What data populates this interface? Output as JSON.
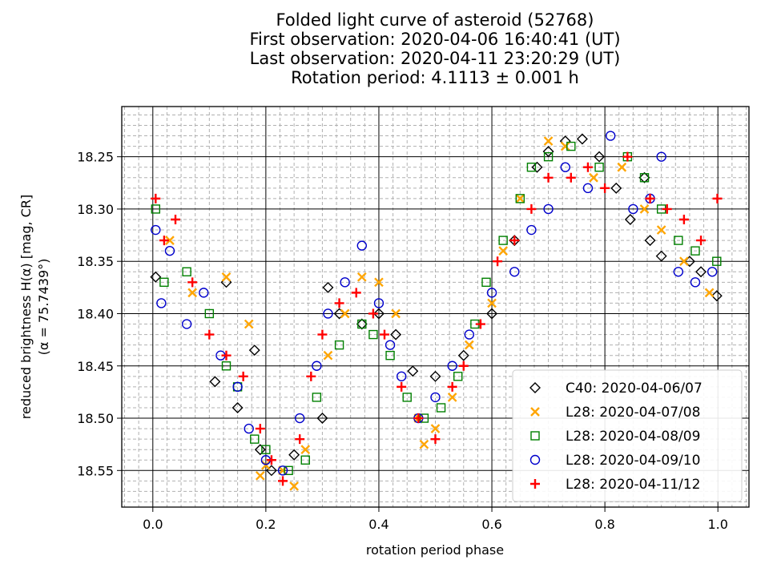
{
  "chart_data": {
    "type": "scatter",
    "title": [
      "Folded light curve of asteroid (52768)",
      "First observation: 2020-04-06 16:40:41 (UT)",
      "Last observation: 2020-04-11 23:20:29 (UT)",
      "Rotation period: 4.1113 ± 0.001 h"
    ],
    "xlabel": "rotation period phase",
    "ylabel": [
      "reduced brightness H(α) [mag, CR]",
      "(α = 75.7439°)"
    ],
    "xlim": [
      -0.055,
      1.055
    ],
    "ylim": [
      18.585,
      18.202
    ],
    "y_inverted": true,
    "x_ticks": [
      0.0,
      0.2,
      0.4,
      0.6,
      0.8,
      1.0
    ],
    "x_tick_labels": [
      "0.0",
      "0.2",
      "0.4",
      "0.6",
      "0.8",
      "1.0"
    ],
    "y_ticks": [
      18.25,
      18.3,
      18.35,
      18.4,
      18.45,
      18.5,
      18.55
    ],
    "y_tick_labels": [
      "18.25",
      "18.30",
      "18.35",
      "18.40",
      "18.45",
      "18.50",
      "18.55"
    ],
    "grid": {
      "major": "solid black",
      "minor": "dashed gray"
    },
    "legend_position": "bottom-right",
    "series": [
      {
        "name": "C40: 2020-04-06/07",
        "marker": "diamond",
        "color": "#000000",
        "points": [
          [
            0.005,
            18.365
          ],
          [
            0.11,
            18.465
          ],
          [
            0.13,
            18.37
          ],
          [
            0.15,
            18.49
          ],
          [
            0.18,
            18.435
          ],
          [
            0.19,
            18.53
          ],
          [
            0.21,
            18.55
          ],
          [
            0.25,
            18.535
          ],
          [
            0.3,
            18.5
          ],
          [
            0.31,
            18.375
          ],
          [
            0.33,
            18.4
          ],
          [
            0.37,
            18.41
          ],
          [
            0.4,
            18.4
          ],
          [
            0.43,
            18.42
          ],
          [
            0.46,
            18.455
          ],
          [
            0.5,
            18.46
          ],
          [
            0.55,
            18.44
          ],
          [
            0.6,
            18.4
          ],
          [
            0.64,
            18.33
          ],
          [
            0.68,
            18.26
          ],
          [
            0.7,
            18.245
          ],
          [
            0.73,
            18.235
          ],
          [
            0.76,
            18.233
          ],
          [
            0.79,
            18.25
          ],
          [
            0.82,
            18.28
          ],
          [
            0.845,
            18.31
          ],
          [
            0.87,
            18.27
          ],
          [
            0.88,
            18.33
          ],
          [
            0.9,
            18.345
          ],
          [
            0.95,
            18.35
          ],
          [
            0.97,
            18.36
          ],
          [
            0.998,
            18.383
          ]
        ]
      },
      {
        "name": "L28: 2020-04-07/08",
        "marker": "x",
        "color": "#ffa500",
        "points": [
          [
            0.03,
            18.33
          ],
          [
            0.07,
            18.38
          ],
          [
            0.13,
            18.365
          ],
          [
            0.17,
            18.41
          ],
          [
            0.19,
            18.555
          ],
          [
            0.2,
            18.545
          ],
          [
            0.23,
            18.55
          ],
          [
            0.25,
            18.565
          ],
          [
            0.27,
            18.53
          ],
          [
            0.31,
            18.44
          ],
          [
            0.34,
            18.4
          ],
          [
            0.37,
            18.365
          ],
          [
            0.4,
            18.37
          ],
          [
            0.43,
            18.4
          ],
          [
            0.47,
            18.5
          ],
          [
            0.48,
            18.525
          ],
          [
            0.5,
            18.51
          ],
          [
            0.53,
            18.48
          ],
          [
            0.56,
            18.43
          ],
          [
            0.6,
            18.39
          ],
          [
            0.62,
            18.34
          ],
          [
            0.65,
            18.29
          ],
          [
            0.7,
            18.235
          ],
          [
            0.73,
            18.24
          ],
          [
            0.78,
            18.27
          ],
          [
            0.83,
            18.26
          ],
          [
            0.87,
            18.3
          ],
          [
            0.9,
            18.32
          ],
          [
            0.94,
            18.35
          ],
          [
            0.985,
            18.38
          ]
        ]
      },
      {
        "name": "L28: 2020-04-08/09",
        "marker": "square",
        "color": "#008000",
        "points": [
          [
            0.005,
            18.3
          ],
          [
            0.02,
            18.37
          ],
          [
            0.06,
            18.36
          ],
          [
            0.1,
            18.4
          ],
          [
            0.13,
            18.45
          ],
          [
            0.15,
            18.47
          ],
          [
            0.18,
            18.52
          ],
          [
            0.2,
            18.53
          ],
          [
            0.24,
            18.55
          ],
          [
            0.27,
            18.54
          ],
          [
            0.29,
            18.48
          ],
          [
            0.33,
            18.43
          ],
          [
            0.37,
            18.41
          ],
          [
            0.39,
            18.42
          ],
          [
            0.42,
            18.44
          ],
          [
            0.45,
            18.48
          ],
          [
            0.48,
            18.5
          ],
          [
            0.51,
            18.49
          ],
          [
            0.54,
            18.46
          ],
          [
            0.57,
            18.41
          ],
          [
            0.59,
            18.37
          ],
          [
            0.62,
            18.33
          ],
          [
            0.65,
            18.29
          ],
          [
            0.67,
            18.26
          ],
          [
            0.7,
            18.25
          ],
          [
            0.74,
            18.24
          ],
          [
            0.79,
            18.26
          ],
          [
            0.84,
            18.25
          ],
          [
            0.87,
            18.27
          ],
          [
            0.9,
            18.3
          ],
          [
            0.93,
            18.33
          ],
          [
            0.96,
            18.34
          ],
          [
            0.998,
            18.35
          ]
        ]
      },
      {
        "name": "L28: 2020-04-09/10",
        "marker": "circle",
        "color": "#0000cc",
        "points": [
          [
            0.005,
            18.32
          ],
          [
            0.015,
            18.39
          ],
          [
            0.03,
            18.34
          ],
          [
            0.06,
            18.41
          ],
          [
            0.09,
            18.38
          ],
          [
            0.12,
            18.44
          ],
          [
            0.15,
            18.47
          ],
          [
            0.17,
            18.51
          ],
          [
            0.2,
            18.54
          ],
          [
            0.23,
            18.55
          ],
          [
            0.26,
            18.5
          ],
          [
            0.29,
            18.45
          ],
          [
            0.31,
            18.4
          ],
          [
            0.34,
            18.37
          ],
          [
            0.37,
            18.335
          ],
          [
            0.4,
            18.39
          ],
          [
            0.42,
            18.43
          ],
          [
            0.44,
            18.46
          ],
          [
            0.47,
            18.5
          ],
          [
            0.5,
            18.48
          ],
          [
            0.53,
            18.45
          ],
          [
            0.56,
            18.42
          ],
          [
            0.6,
            18.38
          ],
          [
            0.64,
            18.36
          ],
          [
            0.67,
            18.32
          ],
          [
            0.7,
            18.3
          ],
          [
            0.73,
            18.26
          ],
          [
            0.77,
            18.28
          ],
          [
            0.81,
            18.23
          ],
          [
            0.85,
            18.3
          ],
          [
            0.88,
            18.29
          ],
          [
            0.9,
            18.25
          ],
          [
            0.93,
            18.36
          ],
          [
            0.96,
            18.37
          ],
          [
            0.99,
            18.36
          ]
        ]
      },
      {
        "name": "L28: 2020-04-11/12",
        "marker": "plus",
        "color": "#ff0000",
        "points": [
          [
            0.005,
            18.29
          ],
          [
            0.02,
            18.33
          ],
          [
            0.04,
            18.31
          ],
          [
            0.07,
            18.37
          ],
          [
            0.1,
            18.42
          ],
          [
            0.13,
            18.44
          ],
          [
            0.16,
            18.46
          ],
          [
            0.19,
            18.51
          ],
          [
            0.21,
            18.54
          ],
          [
            0.23,
            18.56
          ],
          [
            0.26,
            18.52
          ],
          [
            0.28,
            18.46
          ],
          [
            0.3,
            18.42
          ],
          [
            0.33,
            18.39
          ],
          [
            0.36,
            18.38
          ],
          [
            0.39,
            18.4
          ],
          [
            0.41,
            18.42
          ],
          [
            0.44,
            18.47
          ],
          [
            0.47,
            18.5
          ],
          [
            0.5,
            18.52
          ],
          [
            0.53,
            18.47
          ],
          [
            0.55,
            18.45
          ],
          [
            0.58,
            18.41
          ],
          [
            0.61,
            18.35
          ],
          [
            0.64,
            18.33
          ],
          [
            0.67,
            18.3
          ],
          [
            0.7,
            18.27
          ],
          [
            0.74,
            18.27
          ],
          [
            0.77,
            18.26
          ],
          [
            0.8,
            18.28
          ],
          [
            0.84,
            18.25
          ],
          [
            0.88,
            18.29
          ],
          [
            0.91,
            18.3
          ],
          [
            0.94,
            18.31
          ],
          [
            0.97,
            18.33
          ],
          [
            0.999,
            18.29
          ]
        ]
      }
    ]
  }
}
